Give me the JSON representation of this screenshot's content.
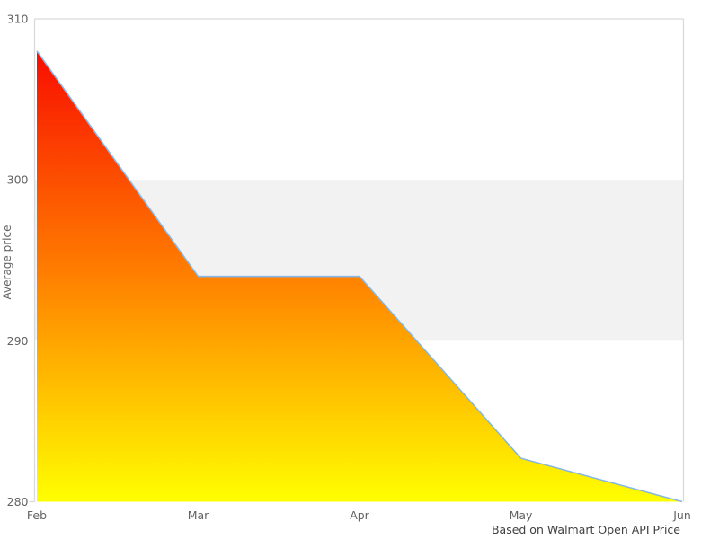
{
  "chart_data": {
    "type": "area",
    "title": "",
    "x": [
      "Feb",
      "Mar",
      "Apr",
      "May",
      "Jun"
    ],
    "series": [
      {
        "name": "Average price",
        "values": [
          308,
          294,
          294,
          282.7,
          280
        ]
      }
    ],
    "xlabel": "",
    "ylabel": "Average price",
    "ylim": [
      280,
      310
    ],
    "yticks": [
      280,
      290,
      300,
      310
    ],
    "grid": false,
    "legend": false,
    "plot_band": {
      "from": 290,
      "to": 300,
      "color": "#f2f2f2"
    },
    "caption": "Based on Walmart Open API Price",
    "colors": {
      "line": "#86b7e4",
      "fill_gradient_top": "#f90d00",
      "fill_gradient_mid": "#ff8000",
      "fill_gradient_bottom": "#ffff00",
      "border": "#d9d9d9",
      "tick_label": "#636363",
      "caption_text": "#404040"
    }
  }
}
